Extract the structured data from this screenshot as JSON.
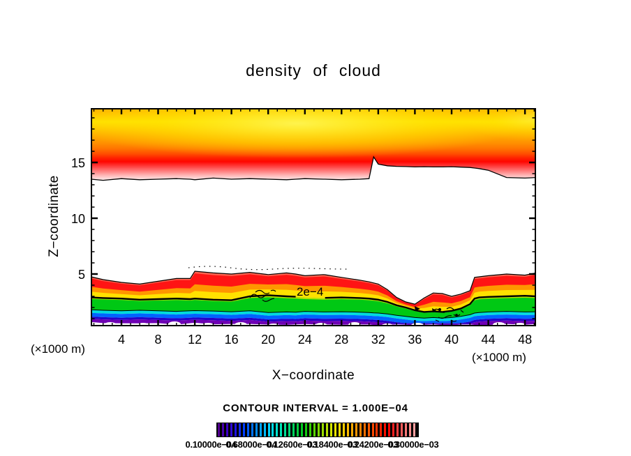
{
  "chart_data": {
    "type": "heatmap",
    "subtype": "filled-contour cross-section with line contours",
    "title": "density of cloud",
    "xlabel": "X−coordinate",
    "ylabel": "Z−coordinate",
    "x_axis_unit": "(×1000 m)",
    "y_axis_unit": "(×1000 m)",
    "contour_note": "CONTOUR INTERVAL = 1.000E−04",
    "contour_line_label": "2e−4",
    "xlim": [
      0.5,
      49.3
    ],
    "ylim": [
      0.3,
      19.9
    ],
    "xticks": [
      4,
      8,
      12,
      16,
      20,
      24,
      28,
      32,
      36,
      40,
      44,
      48
    ],
    "yticks": [
      5,
      10,
      15
    ],
    "x_minor_step": 1,
    "y_minor_step": 1,
    "grid": false,
    "colorbar": {
      "background": "#000000",
      "n_strips": 48,
      "labels": [
        "0.10000e−04",
        "0.68000e−04",
        "0.12600e−03",
        "0.18400e−03",
        "0.24200e−03",
        "0.30000e−03"
      ],
      "gradient_stops": [
        "#520091",
        "#3c00c8",
        "#1e14e6",
        "#0040ff",
        "#0078ff",
        "#00aaff",
        "#00d7ff",
        "#00e6c8",
        "#00dc8c",
        "#00d150",
        "#00c814",
        "#46d200",
        "#8cdc00",
        "#c8e600",
        "#ffe600",
        "#ffc300",
        "#ff9b00",
        "#ff7300",
        "#ff4b00",
        "#ff2300",
        "#ff0000",
        "#ff3c3c",
        "#ff7878",
        "#ffa0a0"
      ]
    },
    "fill_colors": {
      "upper_yellow_core": "#ffe600",
      "upper_orange": "#ff9600",
      "upper_red": "#ff0000",
      "upper_pink_fade": "#ffc8c8",
      "lower_salmon": "#ff6450",
      "lower_red": "#ff1414",
      "lower_orange": "#ff9600",
      "lower_yellow": "#ffe100",
      "lower_light_green": "#b4e100",
      "lower_green": "#00c814",
      "lower_cyan": "#00dcdc",
      "lower_blue": "#0064ff",
      "lower_dark_blue": "#2300c8",
      "lower_purple": "#6e00b4"
    },
    "bands": {
      "x": [
        0.7,
        2,
        4,
        6,
        8,
        10,
        11.5,
        12,
        14,
        16,
        18,
        20,
        22,
        23,
        24,
        26,
        26.2,
        28,
        30,
        31,
        31.5,
        32,
        33,
        34,
        35,
        36,
        37,
        38,
        39,
        40,
        41,
        42,
        42.5,
        43,
        44,
        46,
        48,
        49.2
      ],
      "upper_cloud_top_z": 19.9,
      "upper_cloud_bottom_z": [
        13.5,
        13.4,
        13.55,
        13.45,
        13.5,
        13.55,
        13.5,
        13.45,
        13.6,
        13.5,
        13.55,
        13.5,
        13.45,
        13.5,
        13.55,
        13.5,
        13.5,
        13.45,
        13.5,
        13.55,
        15.5,
        14.85,
        14.7,
        14.65,
        14.63,
        14.6,
        14.62,
        14.6,
        14.6,
        14.62,
        14.58,
        14.55,
        14.5,
        14.45,
        14.3,
        13.65,
        13.6,
        13.65
      ],
      "lower_top_z": [
        4.75,
        4.5,
        4.25,
        4.1,
        4.35,
        4.6,
        4.6,
        5.25,
        5.1,
        5.0,
        5.15,
        4.95,
        5.1,
        5.0,
        4.85,
        4.95,
        4.94,
        4.7,
        4.45,
        4.3,
        4.2,
        4.1,
        3.6,
        2.9,
        2.5,
        2.3,
        2.85,
        3.3,
        3.25,
        3.0,
        3.2,
        3.5,
        4.7,
        4.75,
        4.85,
        5.0,
        4.9,
        5.1
      ],
      "contour_2e4_z": [
        2.9,
        2.85,
        2.8,
        2.7,
        2.75,
        2.8,
        2.75,
        2.8,
        2.7,
        2.65,
        3.0,
        3.1,
        3.0,
        2.96,
        2.9,
        2.85,
        2.86,
        2.9,
        2.85,
        2.8,
        2.75,
        2.7,
        2.5,
        2.2,
        2.0,
        1.75,
        1.6,
        1.65,
        1.6,
        1.7,
        1.9,
        2.3,
        2.8,
        2.9,
        2.95,
        3.0,
        3.05,
        3.0
      ],
      "green_base_z": [
        1.8,
        1.75,
        1.7,
        1.75,
        1.7,
        1.65,
        1.7,
        1.72,
        1.68,
        1.62,
        1.7,
        1.55,
        1.6,
        1.58,
        1.65,
        1.6,
        1.6,
        1.62,
        1.58,
        1.55,
        1.52,
        1.5,
        1.42,
        1.3,
        1.2,
        1.1,
        1.05,
        1.1,
        1.05,
        1.1,
        1.2,
        1.35,
        1.5,
        1.55,
        1.6,
        1.65,
        1.6,
        1.62
      ],
      "surface_white_gap_top_z": 0.45
    }
  }
}
